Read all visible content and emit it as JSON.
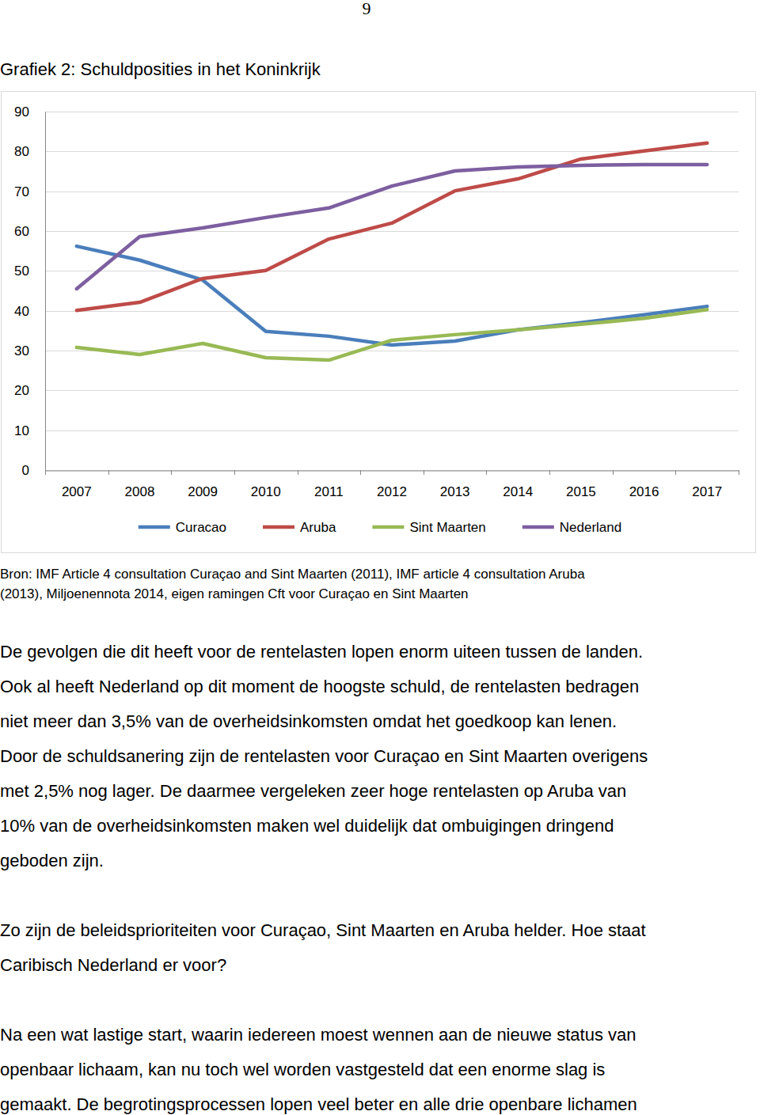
{
  "page_number": "9",
  "chart_data": {
    "type": "line",
    "title": "Grafiek 2: Schuldposities in het Koninkrijk",
    "categories": [
      "2007",
      "2008",
      "2009",
      "2010",
      "2011",
      "2012",
      "2013",
      "2014",
      "2015",
      "2016",
      "2017"
    ],
    "series": [
      {
        "name": "Curacao",
        "color": "#4a7ebb",
        "values": [
          56.2,
          52.7,
          47.7,
          34.8,
          33.6,
          31.4,
          32.4,
          35.2,
          37.0,
          39.0,
          41.1
        ]
      },
      {
        "name": "Aruba",
        "color": "#be4b48",
        "values": [
          40.1,
          42.1,
          48.1,
          50.1,
          58.0,
          62.0,
          70.1,
          73.1,
          78.1,
          80.1,
          82.1
        ]
      },
      {
        "name": "Sint Maarten",
        "color": "#98b954",
        "values": [
          30.8,
          29.0,
          31.8,
          28.2,
          27.6,
          32.6,
          34.0,
          35.2,
          36.6,
          38.1,
          40.3
        ]
      },
      {
        "name": "Nederland",
        "color": "#7d5fa0",
        "values": [
          45.5,
          58.6,
          60.8,
          63.4,
          65.8,
          71.3,
          75.1,
          76.1,
          76.5,
          76.7,
          76.7
        ]
      }
    ],
    "ylim": [
      0,
      90
    ],
    "yticks": [
      0,
      10,
      20,
      30,
      40,
      50,
      60,
      70,
      80,
      90
    ],
    "grid": true,
    "legend": "bottom"
  },
  "source": [
    "Bron: IMF Article 4 consultation Curaçao and Sint Maarten (2011), IMF article 4 consultation Aruba",
    "(2013), Miljoenennota 2014, eigen ramingen Cft voor Curaçao en Sint Maarten"
  ],
  "paragraphs": [
    [
      "De gevolgen die dit heeft voor de rentelasten lopen enorm uiteen tussen de landen.",
      "Ook al heeft Nederland op dit moment de hoogste schuld, de rentelasten bedragen",
      "niet meer dan 3,5% van de overheidsinkomsten omdat het goedkoop kan lenen.",
      "Door de schuldsanering zijn de rentelasten voor Curaçao en Sint Maarten overigens",
      "met 2,5% nog lager. De daarmee vergeleken zeer hoge rentelasten op Aruba van",
      "10% van de overheidsinkomsten maken wel duidelijk dat ombuigingen dringend",
      "geboden zijn."
    ],
    [
      "Zo zijn de beleidsprioriteiten voor Curaçao, Sint Maarten en Aruba helder. Hoe staat",
      "Caribisch Nederland er voor?"
    ],
    [
      "Na een wat lastige start, waarin iedereen moest wennen aan de nieuwe status van",
      "openbaar lichaam, kan nu toch wel worden vastgesteld dat een enorme slag is",
      "gemaakt. De begrotingsprocessen lopen veel beter en alle drie openbare lichamen"
    ]
  ]
}
